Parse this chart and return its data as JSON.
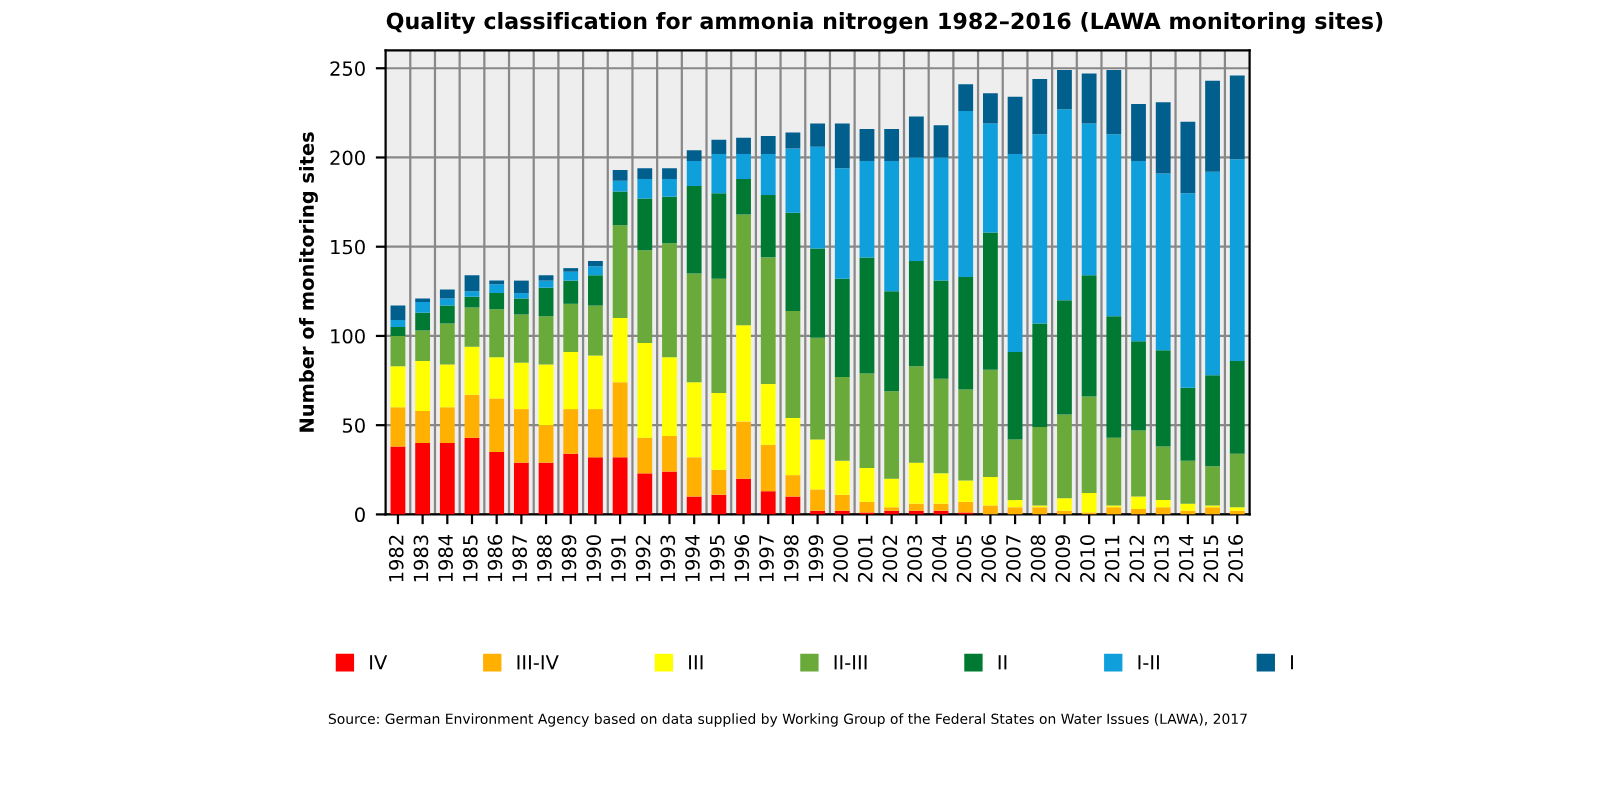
{
  "chart_data": {
    "type": "bar",
    "stacked": true,
    "title": "Quality classification for ammonia nitrogen 1982–2016 (LAWA monitoring sites)",
    "ylabel": "Number of monitoring sites",
    "categories": [
      "1982",
      "1983",
      "1984",
      "1985",
      "1986",
      "1987",
      "1988",
      "1989",
      "1990",
      "1991",
      "1992",
      "1993",
      "1994",
      "1995",
      "1996",
      "1997",
      "1998",
      "1999",
      "2000",
      "2001",
      "2002",
      "2003",
      "2004",
      "2005",
      "2006",
      "2007",
      "2008",
      "2009",
      "2010",
      "2011",
      "2012",
      "2013",
      "2014",
      "2015",
      "2016"
    ],
    "series": [
      {
        "name": "IV",
        "color": "#ff0000",
        "values": [
          38,
          40,
          40,
          43,
          35,
          29,
          29,
          34,
          32,
          32,
          23,
          24,
          10,
          11,
          20,
          13,
          10,
          2,
          2,
          1,
          2,
          2,
          2,
          1,
          0,
          0,
          0,
          0,
          0,
          0,
          0,
          0,
          0,
          0,
          0
        ]
      },
      {
        "name": "III-IV",
        "color": "#ffb000",
        "values": [
          22,
          18,
          20,
          24,
          30,
          30,
          21,
          25,
          27,
          42,
          20,
          20,
          22,
          14,
          32,
          26,
          12,
          12,
          9,
          6,
          2,
          4,
          4,
          6,
          5,
          4,
          4,
          2,
          1,
          4,
          3,
          4,
          2,
          4,
          2
        ]
      },
      {
        "name": "III",
        "color": "#ffff00",
        "values": [
          23,
          28,
          24,
          27,
          23,
          26,
          34,
          32,
          30,
          36,
          53,
          44,
          42,
          43,
          54,
          34,
          32,
          28,
          19,
          19,
          16,
          23,
          17,
          12,
          16,
          4,
          1,
          7,
          11,
          1,
          7,
          4,
          4,
          1,
          2
        ]
      },
      {
        "name": "II-III",
        "color": "#6aaa3a",
        "values": [
          17,
          17,
          23,
          22,
          27,
          27,
          27,
          27,
          28,
          52,
          52,
          64,
          61,
          64,
          62,
          71,
          60,
          57,
          47,
          53,
          49,
          54,
          53,
          51,
          60,
          34,
          44,
          47,
          54,
          38,
          37,
          30,
          24,
          22,
          30
        ]
      },
      {
        "name": "II",
        "color": "#007a33",
        "values": [
          5,
          10,
          10,
          6,
          9,
          9,
          16,
          13,
          17,
          19,
          29,
          26,
          49,
          48,
          20,
          35,
          55,
          50,
          55,
          65,
          56,
          59,
          55,
          63,
          77,
          49,
          58,
          64,
          68,
          68,
          50,
          54,
          41,
          51,
          52
        ]
      },
      {
        "name": "I-II",
        "color": "#0fa0dc",
        "values": [
          4,
          6,
          4,
          3,
          5,
          3,
          4,
          5,
          5,
          6,
          11,
          10,
          14,
          22,
          14,
          23,
          36,
          57,
          62,
          54,
          73,
          58,
          69,
          93,
          61,
          111,
          106,
          107,
          85,
          102,
          101,
          99,
          109,
          114,
          113
        ]
      },
      {
        "name": "I",
        "color": "#005f8c",
        "values": [
          8,
          2,
          5,
          9,
          2,
          7,
          3,
          2,
          3,
          6,
          6,
          6,
          6,
          8,
          9,
          10,
          9,
          13,
          25,
          18,
          18,
          23,
          18,
          15,
          17,
          32,
          31,
          22,
          28,
          36,
          32,
          40,
          40,
          51,
          47
        ]
      }
    ],
    "ylim": [
      0,
      260
    ],
    "yticks": [
      0,
      50,
      100,
      150,
      200,
      250
    ],
    "grid": true,
    "legend": "bottom",
    "annotations": [
      "Source: German Environment Agency based on data supplied by Working Group of the Federal States on Water Issues (LAWA), 2017"
    ]
  }
}
